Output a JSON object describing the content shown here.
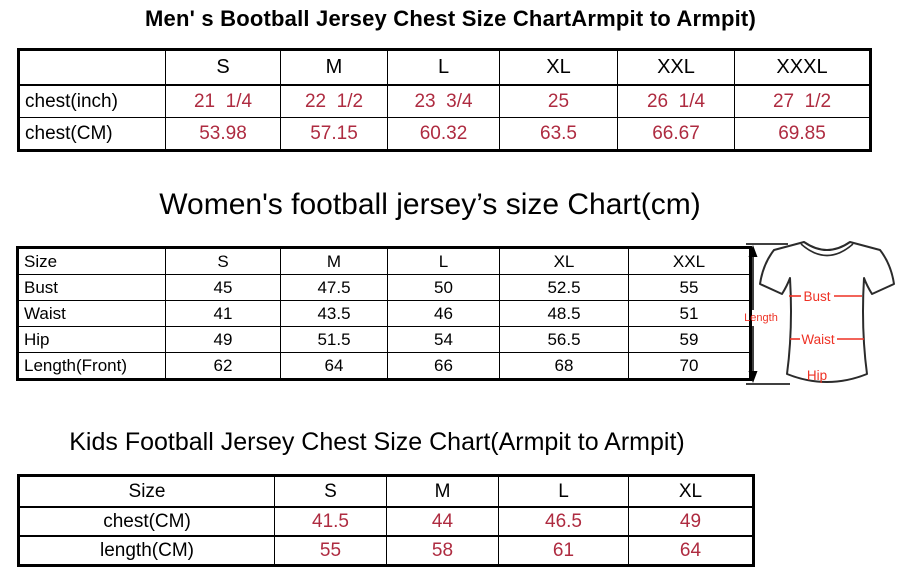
{
  "colors": {
    "table_value_red": "#AE2B40",
    "diagram_red": "#EE3124",
    "ink": "#000000",
    "background": "#FFFFFF"
  },
  "men_section": {
    "title": "Men' s Bootball Jersey Chest Size ChartArmpit to Armpit)",
    "table": {
      "header": [
        "",
        "S",
        "M",
        "L",
        "XL",
        "XXL",
        "XXXL"
      ],
      "rows": [
        {
          "label": "chest(inch)",
          "values": [
            "21  1/4",
            "22  1/2",
            "23  3/4",
            "25",
            "26  1/4",
            "27  1/2"
          ]
        },
        {
          "label": "chest(CM)",
          "values": [
            "53.98",
            "57.15",
            "60.32",
            "63.5",
            "66.67",
            "69.85"
          ]
        }
      ]
    }
  },
  "women_section": {
    "title": "Women's football jersey’s size Chart(cm)",
    "table": {
      "header": [
        "Size",
        "S",
        "M",
        "L",
        "XL",
        "XXL"
      ],
      "rows": [
        {
          "label": "Bust",
          "values": [
            "45",
            "47.5",
            "50",
            "52.5",
            "55"
          ]
        },
        {
          "label": "Waist",
          "values": [
            "41",
            "43.5",
            "46",
            "48.5",
            "51"
          ]
        },
        {
          "label": "Hip",
          "values": [
            "49",
            "51.5",
            "54",
            "56.5",
            "59"
          ]
        },
        {
          "label": "Length(Front)",
          "values": [
            "62",
            "64",
            "66",
            "68",
            "70"
          ]
        }
      ]
    },
    "diagram": {
      "length_label": "Length",
      "bust_label": "Bust",
      "waist_label": "Waist",
      "hip_label": "Hip"
    }
  },
  "kids_section": {
    "title": "Kids Football Jersey Chest Size Chart(Armpit to Armpit)",
    "table": {
      "header": [
        "Size",
        "S",
        "M",
        "L",
        "XL"
      ],
      "rows": [
        {
          "label": "chest(CM)",
          "values": [
            "41.5",
            "44",
            "46.5",
            "49"
          ]
        },
        {
          "label": "length(CM)",
          "values": [
            "55",
            "58",
            "61",
            "64"
          ]
        }
      ]
    }
  },
  "chart_data": [
    {
      "type": "table",
      "title": "Men' s Bootball Jersey Chest Size ChartArmpit to Armpit)",
      "columns": [
        "",
        "S",
        "M",
        "L",
        "XL",
        "XXL",
        "XXXL"
      ],
      "rows": [
        [
          "chest(inch)",
          "21 1/4",
          "22 1/2",
          "23 3/4",
          "25",
          "26 1/4",
          "27 1/2"
        ],
        [
          "chest(CM)",
          "53.98",
          "57.15",
          "60.32",
          "63.5",
          "66.67",
          "69.85"
        ]
      ]
    },
    {
      "type": "table",
      "title": "Women's football jersey’s size Chart(cm)",
      "columns": [
        "Size",
        "S",
        "M",
        "L",
        "XL",
        "XXL"
      ],
      "rows": [
        [
          "Bust",
          "45",
          "47.5",
          "50",
          "52.5",
          "55"
        ],
        [
          "Waist",
          "41",
          "43.5",
          "46",
          "48.5",
          "51"
        ],
        [
          "Hip",
          "49",
          "51.5",
          "54",
          "56.5",
          "59"
        ],
        [
          "Length(Front)",
          "62",
          "64",
          "66",
          "68",
          "70"
        ]
      ]
    },
    {
      "type": "table",
      "title": "Kids Football Jersey Chest Size Chart(Armpit to Armpit)",
      "columns": [
        "Size",
        "S",
        "M",
        "L",
        "XL"
      ],
      "rows": [
        [
          "chest(CM)",
          "41.5",
          "44",
          "46.5",
          "49"
        ],
        [
          "length(CM)",
          "55",
          "58",
          "61",
          "64"
        ]
      ]
    }
  ]
}
